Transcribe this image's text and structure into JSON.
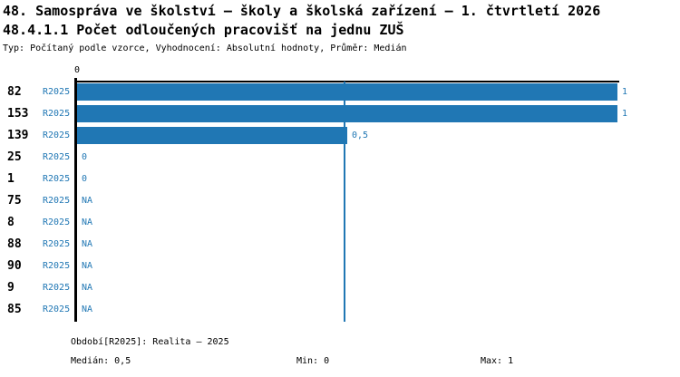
{
  "header": {
    "title": "48. Samospráva ve školství – školy a školská zařízení – 1. čtvrtletí 2026",
    "subtitle": "48.4.1.1 Počet odloučených pracovišť na jednu ZUŠ",
    "meta": "Typ: Počítaný podle vzorce, Vyhodnocení: Absolutní hodnoty, Průměr: Medián"
  },
  "chart_data": {
    "type": "bar",
    "orientation": "horizontal",
    "title": "48.4.1.1 Počet odloučených pracovišť na jednu ZUŠ",
    "categories": [
      "82",
      "153",
      "139",
      "25",
      "1",
      "75",
      "8",
      "88",
      "90",
      "9",
      "85"
    ],
    "series_label": "R2025",
    "values": [
      1,
      1,
      0.5,
      0,
      0,
      null,
      null,
      null,
      null,
      null,
      null
    ],
    "value_labels": [
      "1",
      "1",
      "0,5",
      "0",
      "0",
      "NA",
      "NA",
      "NA",
      "NA",
      "NA",
      "NA"
    ],
    "xlim": [
      0,
      1
    ],
    "x_tick_labels": [
      "0"
    ],
    "median_line_value": 0.5,
    "grid": false,
    "legend": false,
    "stats": {
      "median": "0,5",
      "min": "0",
      "max": "1"
    }
  },
  "footer": {
    "period": "Období[R2025]: Realita – 2025",
    "median": "Medián: 0,5",
    "min": "Min: 0",
    "max": "Max: 1"
  },
  "colors": {
    "bar": "#2077b4",
    "accent_text": "#2077b4",
    "axis": "#000000",
    "background": "#ffffff"
  }
}
